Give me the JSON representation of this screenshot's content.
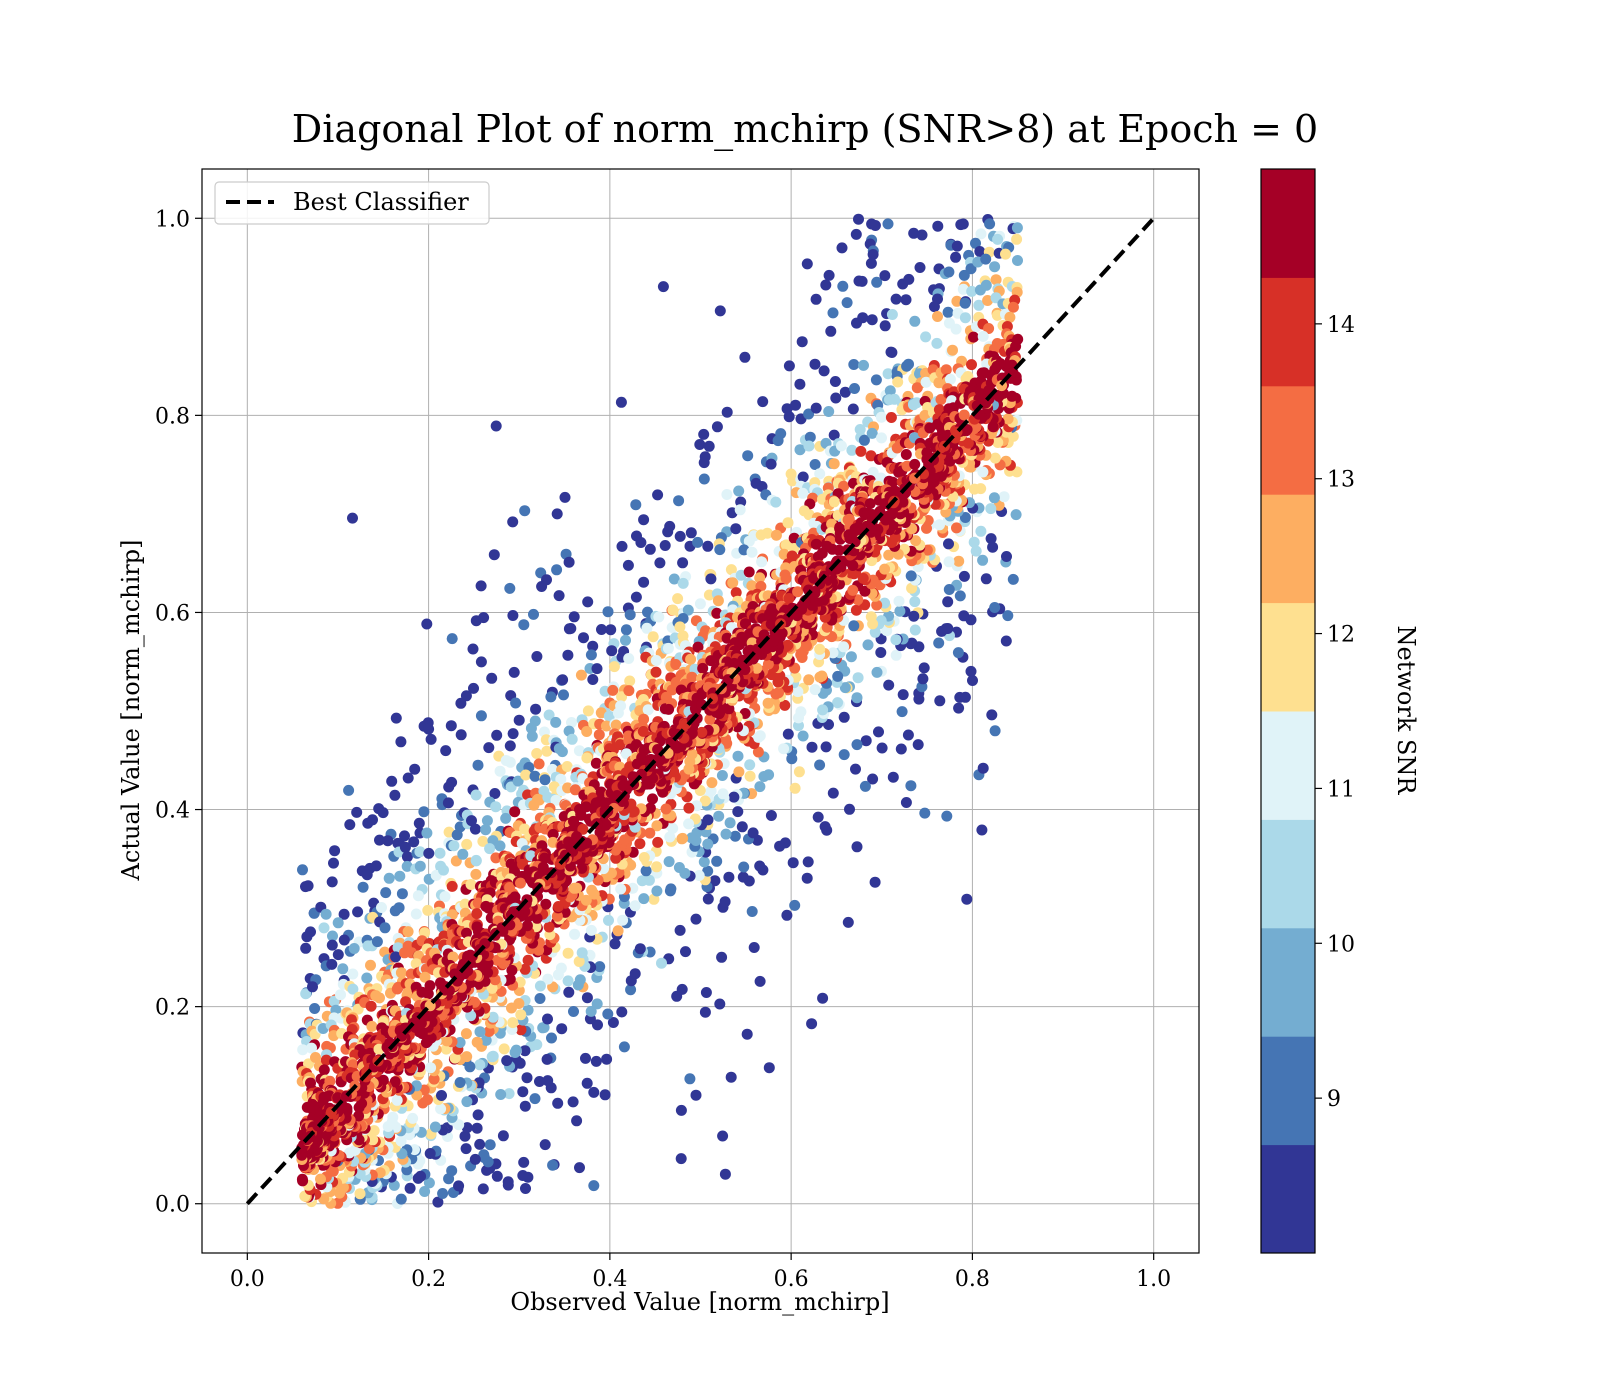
{
  "chart_data": {
    "type": "scatter",
    "title": "Diagonal Plot of norm_mchirp (SNR>8) at Epoch = 0",
    "xlabel": "Observed Value [norm_mchirp]",
    "ylabel": "Actual Value [norm_mchirp]",
    "xlim": [
      -0.05,
      1.05
    ],
    "ylim": [
      -0.05,
      1.05
    ],
    "xticks": [
      "0.0",
      "0.2",
      "0.4",
      "0.6",
      "0.8",
      "1.0"
    ],
    "yticks": [
      "0.0",
      "0.2",
      "0.4",
      "0.6",
      "0.8",
      "1.0"
    ],
    "grid": true,
    "legend": {
      "placement": "top-left",
      "entries": [
        "Best Classifier"
      ]
    },
    "reference_line": {
      "name": "Best Classifier",
      "x": [
        0,
        1
      ],
      "y": [
        0,
        1
      ],
      "style": "dashed",
      "color": "#000000"
    },
    "colorbar": {
      "label": "Network SNR",
      "range": [
        8,
        15
      ],
      "ticks": [
        "9",
        "10",
        "11",
        "12",
        "13",
        "14"
      ],
      "colors": [
        "#313695",
        "#4575b4",
        "#74add1",
        "#abd9e9",
        "#e0f3f8",
        "#fee090",
        "#fdae61",
        "#f46d43",
        "#d73027",
        "#a50026"
      ]
    },
    "point_cloud": {
      "x_range": [
        0.06,
        0.85
      ],
      "y_range": [
        0.0,
        1.0
      ],
      "description_of_distribution": "dense band along the diagonal, high-SNR (dark red) near the line, lower SNR scattered further away"
    }
  }
}
